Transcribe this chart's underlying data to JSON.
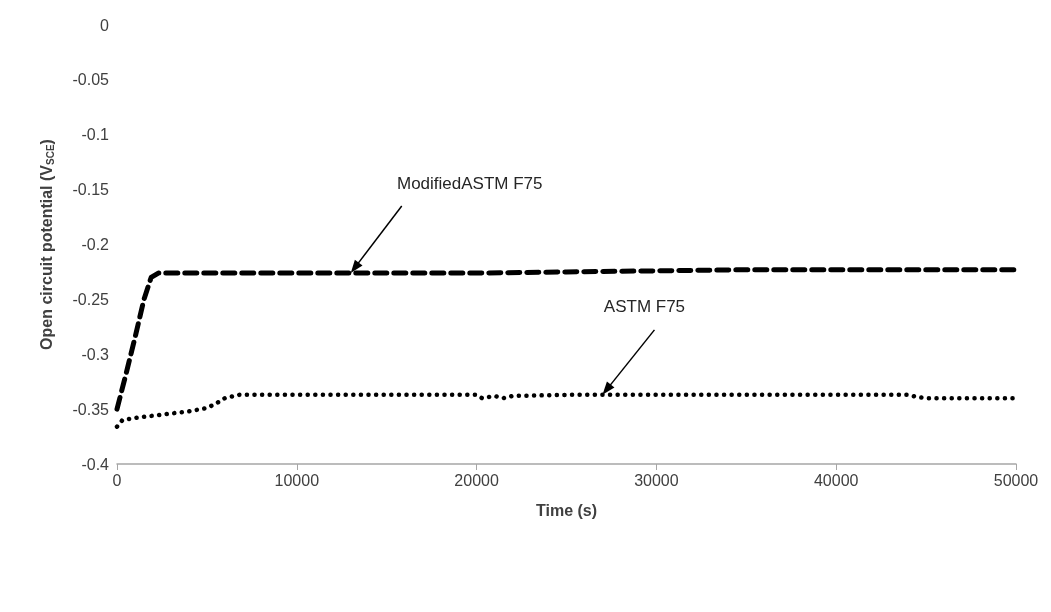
{
  "chart_data": {
    "type": "line",
    "xlabel": "Time (s)",
    "ylabel": "Open circuit potential (V$_{SCE}$)",
    "xlim": [
      0,
      50000
    ],
    "xticks": [
      0,
      10000,
      20000,
      30000,
      40000,
      50000
    ],
    "ylim": [
      -0.4,
      0
    ],
    "yticks": [
      -0.4,
      -0.35,
      -0.3,
      -0.25,
      -0.2,
      -0.15,
      -0.1,
      -0.05,
      0
    ],
    "marker": "none",
    "annotations": [
      {
        "text": "ModifiedASTM F75",
        "x": 13000,
        "y": -0.226
      },
      {
        "text": "ASTM F75",
        "x": 27000,
        "y": -0.337
      }
    ],
    "series": [
      {
        "color": "#000000",
        "line_style": "dashed",
        "x": [
          0,
          500,
          1000,
          1500,
          1900,
          2300,
          5000,
          10000,
          15000,
          20000,
          25000,
          30000,
          35000,
          40000,
          45000,
          50000
        ],
        "values": [
          -0.35,
          -0.318,
          -0.285,
          -0.25,
          -0.23,
          -0.226,
          -0.226,
          -0.226,
          -0.226,
          -0.226,
          -0.225,
          -0.224,
          -0.223,
          -0.223,
          -0.223,
          -0.223
        ]
      },
      {
        "color": "#000000",
        "line_style": "dotted",
        "x": [
          0,
          300,
          1000,
          2000,
          3000,
          4000,
          5000,
          5500,
          6000,
          6800,
          8000,
          10000,
          15000,
          20000,
          20300,
          21000,
          21500,
          22000,
          25000,
          30000,
          35000,
          40000,
          44000,
          44500,
          45000,
          50000
        ],
        "values": [
          -0.366,
          -0.36,
          -0.358,
          -0.356,
          -0.354,
          -0.352,
          -0.349,
          -0.345,
          -0.34,
          -0.337,
          -0.337,
          -0.337,
          -0.337,
          -0.337,
          -0.34,
          -0.338,
          -0.34,
          -0.338,
          -0.337,
          -0.337,
          -0.337,
          -0.337,
          -0.337,
          -0.339,
          -0.34,
          -0.34
        ]
      }
    ]
  }
}
